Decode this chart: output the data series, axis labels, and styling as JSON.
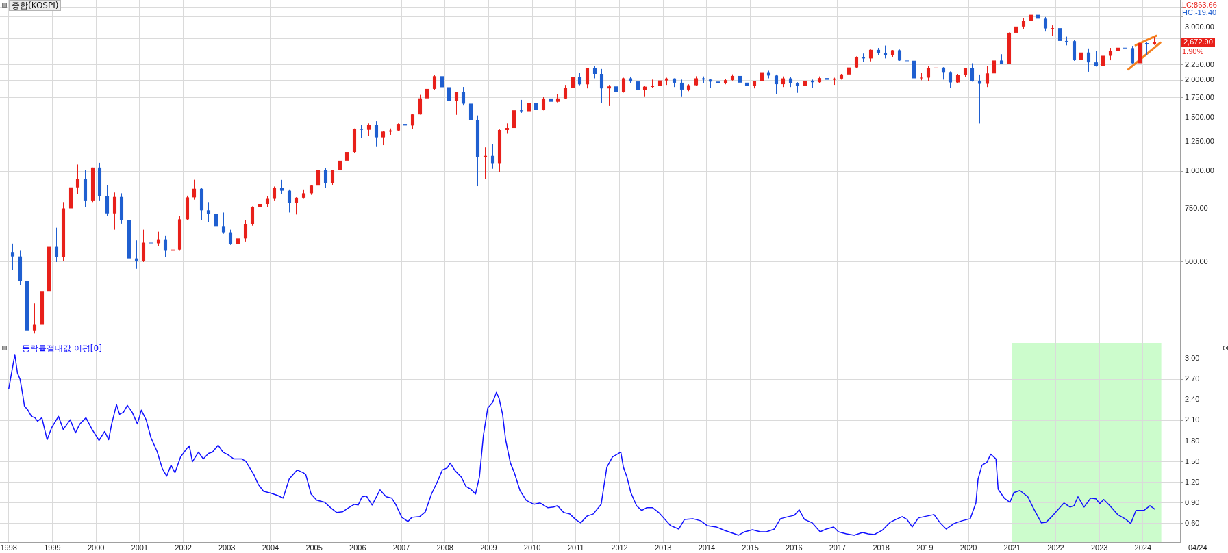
{
  "chart_data": [
    {
      "type": "candlestick",
      "title": "종합(KOSPI)",
      "x": [
        1998.08,
        1998.25,
        1998.42,
        1998.58,
        1998.75,
        1998.92,
        1999.08,
        1999.25,
        1999.42,
        1999.58,
        1999.75,
        1999.92,
        2000.08,
        2000.25,
        2000.42,
        2000.58,
        2000.75,
        2000.92,
        2001.08,
        2001.25,
        2001.42,
        2001.58,
        2001.75,
        2001.92,
        2002.08,
        2002.25,
        2002.42,
        2002.58,
        2002.75,
        2002.92,
        2003.08,
        2003.25,
        2003.42,
        2003.58,
        2003.75,
        2003.92,
        2004.08,
        2004.25,
        2004.42,
        2004.58,
        2004.75,
        2004.92,
        2005.08,
        2005.25,
        2005.42,
        2005.58,
        2005.75,
        2005.92,
        2006.08,
        2006.25,
        2006.42,
        2006.58,
        2006.75,
        2006.92,
        2007.08,
        2007.25,
        2007.42,
        2007.58,
        2007.75,
        2007.92,
        2008.08,
        2008.25,
        2008.42,
        2008.58,
        2008.75,
        2008.92,
        2009.08,
        2009.25,
        2009.42,
        2009.58,
        2009.75,
        2009.92,
        2010.08,
        2010.25,
        2010.42,
        2010.58,
        2010.75,
        2010.92,
        2011.08,
        2011.25,
        2011.42,
        2011.58,
        2011.75,
        2011.92,
        2012.08,
        2012.25,
        2012.42,
        2012.58,
        2012.75,
        2012.92,
        2013.08,
        2013.25,
        2013.42,
        2013.58,
        2013.75,
        2013.92,
        2014.08,
        2014.25,
        2014.42,
        2014.58,
        2014.75,
        2014.92,
        2015.08,
        2015.25,
        2015.42,
        2015.58,
        2015.75,
        2015.92,
        2016.08,
        2016.25,
        2016.42,
        2016.58,
        2016.75,
        2016.92,
        2017.08,
        2017.25,
        2017.42,
        2017.58,
        2017.75,
        2017.92,
        2018.08,
        2018.25,
        2018.42,
        2018.58,
        2018.75,
        2018.92,
        2019.08,
        2019.25,
        2019.42,
        2019.58,
        2019.75,
        2019.92,
        2020.08,
        2020.25,
        2020.42,
        2020.58,
        2020.75,
        2020.92,
        2021.08,
        2021.25,
        2021.42,
        2021.58,
        2021.75,
        2021.92,
        2022.08,
        2022.25,
        2022.42,
        2022.58,
        2022.75,
        2022.92,
        2023.08,
        2023.25,
        2023.42,
        2023.58,
        2023.75,
        2023.92,
        2024.08,
        2024.25
      ],
      "ohlc": [
        [
          540,
          576,
          470,
          522
        ],
        [
          522,
          545,
          420,
          434
        ],
        [
          434,
          450,
          277,
          297
        ],
        [
          297,
          365,
          290,
          310
        ],
        [
          310,
          410,
          282,
          401
        ],
        [
          401,
          580,
          395,
          562
        ],
        [
          562,
          650,
          500,
          519
        ],
        [
          519,
          790,
          505,
          753
        ],
        [
          753,
          890,
          690,
          884
        ],
        [
          884,
          1052,
          840,
          943
        ],
        [
          943,
          1010,
          760,
          800
        ],
        [
          800,
          1028,
          790,
          1028
        ],
        [
          1028,
          1066,
          800,
          828
        ],
        [
          828,
          900,
          710,
          725
        ],
        [
          725,
          850,
          640,
          822
        ],
        [
          822,
          845,
          670,
          688
        ],
        [
          688,
          720,
          505,
          514
        ],
        [
          514,
          590,
          475,
          505
        ],
        [
          505,
          640,
          500,
          580
        ],
        [
          580,
          590,
          490,
          577
        ],
        [
          577,
          630,
          565,
          595
        ],
        [
          595,
          610,
          520,
          545
        ],
        [
          545,
          560,
          463,
          550
        ],
        [
          550,
          710,
          545,
          693
        ],
        [
          693,
          830,
          690,
          819
        ],
        [
          819,
          937,
          805,
          875
        ],
        [
          875,
          880,
          690,
          742
        ],
        [
          742,
          790,
          680,
          723
        ],
        [
          723,
          740,
          575,
          658
        ],
        [
          658,
          730,
          620,
          627
        ],
        [
          627,
          640,
          570,
          575
        ],
        [
          575,
          610,
          512,
          599
        ],
        [
          599,
          690,
          585,
          669
        ],
        [
          669,
          765,
          660,
          759
        ],
        [
          759,
          785,
          690,
          779
        ],
        [
          779,
          825,
          760,
          810
        ],
        [
          810,
          890,
          800,
          880
        ],
        [
          880,
          936,
          840,
          862
        ],
        [
          862,
          870,
          730,
          785
        ],
        [
          785,
          820,
          719,
          817
        ],
        [
          817,
          870,
          810,
          845
        ],
        [
          845,
          900,
          835,
          896
        ],
        [
          896,
          1022,
          890,
          1011
        ],
        [
          1011,
          1022,
          880,
          912
        ],
        [
          912,
          1010,
          900,
          1008
        ],
        [
          1008,
          1130,
          1000,
          1083
        ],
        [
          1083,
          1230,
          1080,
          1158
        ],
        [
          1158,
          1385,
          1150,
          1379
        ],
        [
          1379,
          1425,
          1290,
          1371
        ],
        [
          1371,
          1440,
          1310,
          1420
        ],
        [
          1420,
          1464,
          1203,
          1295
        ],
        [
          1295,
          1360,
          1220,
          1352
        ],
        [
          1352,
          1385,
          1320,
          1364
        ],
        [
          1364,
          1440,
          1355,
          1434
        ],
        [
          1434,
          1470,
          1345,
          1417
        ],
        [
          1417,
          1550,
          1380,
          1542
        ],
        [
          1542,
          1790,
          1540,
          1743
        ],
        [
          1743,
          2015,
          1638,
          1873
        ],
        [
          1873,
          2085,
          1860,
          2064
        ],
        [
          2064,
          2080,
          1770,
          1897
        ],
        [
          1897,
          1900,
          1560,
          1711
        ],
        [
          1711,
          1830,
          1537,
          1825
        ],
        [
          1825,
          1901,
          1650,
          1674
        ],
        [
          1674,
          1700,
          1440,
          1474
        ],
        [
          1474,
          1530,
          892,
          1113
        ],
        [
          1113,
          1200,
          940,
          1124
        ],
        [
          1124,
          1230,
          1018,
          1063
        ],
        [
          1063,
          1375,
          992,
          1369
        ],
        [
          1369,
          1440,
          1330,
          1390
        ],
        [
          1390,
          1600,
          1370,
          1591
        ],
        [
          1591,
          1723,
          1560,
          1580
        ],
        [
          1580,
          1690,
          1520,
          1682
        ],
        [
          1682,
          1725,
          1550,
          1594
        ],
        [
          1594,
          1760,
          1590,
          1741
        ],
        [
          1741,
          1760,
          1530,
          1698
        ],
        [
          1698,
          1800,
          1690,
          1742
        ],
        [
          1742,
          1930,
          1740,
          1882
        ],
        [
          1882,
          2055,
          1880,
          2051
        ],
        [
          2051,
          2115,
          1925,
          1939
        ],
        [
          1939,
          2200,
          1880,
          2192
        ],
        [
          2192,
          2231,
          2030,
          2100
        ],
        [
          2100,
          2180,
          1684,
          1880
        ],
        [
          1880,
          1930,
          1644,
          1909
        ],
        [
          1909,
          1940,
          1780,
          1825
        ],
        [
          1825,
          2040,
          1820,
          2030
        ],
        [
          2030,
          2057,
          1960,
          1982
        ],
        [
          1982,
          1990,
          1780,
          1854
        ],
        [
          1854,
          1920,
          1770,
          1905
        ],
        [
          1905,
          2010,
          1890,
          1912
        ],
        [
          1912,
          2000,
          1860,
          1997
        ],
        [
          1997,
          2040,
          1930,
          2027
        ],
        [
          2027,
          2030,
          1900,
          1963
        ],
        [
          1963,
          2010,
          1770,
          1863
        ],
        [
          1863,
          1940,
          1840,
          1926
        ],
        [
          1926,
          2063,
          1920,
          2030
        ],
        [
          2030,
          2060,
          1960,
          2011
        ],
        [
          2011,
          2015,
          1886,
          1980
        ],
        [
          1980,
          2010,
          1920,
          1961
        ],
        [
          1961,
          2020,
          1940,
          2002
        ],
        [
          2002,
          2093,
          1995,
          2068
        ],
        [
          2068,
          2070,
          1903,
          1964
        ],
        [
          1964,
          1990,
          1880,
          1916
        ],
        [
          1916,
          1990,
          1880,
          1985
        ],
        [
          1985,
          2189,
          1960,
          2127
        ],
        [
          2127,
          2150,
          2030,
          2074
        ],
        [
          2074,
          2090,
          1800,
          1941
        ],
        [
          1941,
          2060,
          1900,
          2029
        ],
        [
          2029,
          2050,
          1900,
          1961
        ],
        [
          1961,
          1970,
          1817,
          1916
        ],
        [
          1916,
          2020,
          1910,
          1994
        ],
        [
          1994,
          2010,
          1892,
          1970
        ],
        [
          1970,
          2060,
          1960,
          2034
        ],
        [
          2034,
          2073,
          1990,
          2008
        ],
        [
          2008,
          2040,
          1931,
          2026
        ],
        [
          2026,
          2100,
          2010,
          2091
        ],
        [
          2091,
          2220,
          2070,
          2205
        ],
        [
          2205,
          2400,
          2200,
          2391
        ],
        [
          2391,
          2453,
          2300,
          2363
        ],
        [
          2363,
          2530,
          2310,
          2523
        ],
        [
          2523,
          2561,
          2420,
          2467
        ],
        [
          2467,
          2607,
          2363,
          2427
        ],
        [
          2427,
          2520,
          2390,
          2515
        ],
        [
          2515,
          2530,
          2320,
          2326
        ],
        [
          2326,
          2340,
          2240,
          2322
        ],
        [
          2322,
          2350,
          1985,
          2030
        ],
        [
          2030,
          2120,
          2000,
          2041
        ],
        [
          2041,
          2230,
          1990,
          2195
        ],
        [
          2195,
          2250,
          2130,
          2203
        ],
        [
          2203,
          2210,
          2010,
          2130
        ],
        [
          2130,
          2140,
          1891,
          1967
        ],
        [
          1967,
          2100,
          1960,
          2083
        ],
        [
          2083,
          2200,
          2050,
          2197
        ],
        [
          2197,
          2277,
          1980,
          1987
        ],
        [
          1987,
          2090,
          1439,
          1947
        ],
        [
          1947,
          2225,
          1900,
          2108
        ],
        [
          2108,
          2458,
          2100,
          2326
        ],
        [
          2326,
          2440,
          2260,
          2267
        ],
        [
          2267,
          2880,
          2260,
          2873
        ],
        [
          2873,
          3266,
          2850,
          3013
        ],
        [
          3013,
          3220,
          2950,
          3147
        ],
        [
          3147,
          3316,
          3110,
          3296
        ],
        [
          3296,
          3310,
          3060,
          3199
        ],
        [
          3199,
          3240,
          2900,
          2970
        ],
        [
          2970,
          3040,
          2800,
          2977
        ],
        [
          2977,
          3000,
          2591,
          2699
        ],
        [
          2699,
          2790,
          2610,
          2695
        ],
        [
          2695,
          2720,
          2320,
          2332
        ],
        [
          2332,
          2550,
          2276,
          2472
        ],
        [
          2472,
          2550,
          2134,
          2293
        ],
        [
          2293,
          2500,
          2220,
          2236
        ],
        [
          2236,
          2490,
          2180,
          2412
        ],
        [
          2412,
          2560,
          2330,
          2501
        ],
        [
          2501,
          2650,
          2470,
          2564
        ],
        [
          2564,
          2668,
          2500,
          2556
        ],
        [
          2556,
          2600,
          2273,
          2277
        ],
        [
          2277,
          2670,
          2270,
          2655
        ],
        [
          2655,
          2680,
          2429,
          2642
        ],
        [
          2642,
          2780,
          2620,
          2672.9
        ]
      ],
      "colors": [
        "#1f5fd0",
        "#1f5fd0",
        "#1f5fd0",
        "#e8201a",
        "#e8201a",
        "#e8201a",
        "#1f5fd0",
        "#e8201a",
        "#e8201a",
        "#e8201a",
        "#1f5fd0",
        "#e8201a",
        "#1f5fd0",
        "#1f5fd0",
        "#e8201a",
        "#1f5fd0",
        "#1f5fd0",
        "#1f5fd0",
        "#e8201a",
        "#1f5fd0",
        "#e8201a",
        "#1f5fd0",
        "#e8201a",
        "#e8201a",
        "#e8201a",
        "#e8201a",
        "#1f5fd0",
        "#1f5fd0",
        "#1f5fd0",
        "#1f5fd0",
        "#1f5fd0",
        "#e8201a",
        "#e8201a",
        "#e8201a",
        "#e8201a",
        "#e8201a",
        "#e8201a",
        "#1f5fd0",
        "#1f5fd0",
        "#e8201a",
        "#e8201a",
        "#e8201a",
        "#e8201a",
        "#1f5fd0",
        "#e8201a",
        "#e8201a",
        "#e8201a",
        "#e8201a",
        "#1f5fd0",
        "#e8201a",
        "#1f5fd0",
        "#e8201a",
        "#e8201a",
        "#e8201a",
        "#1f5fd0",
        "#e8201a",
        "#e8201a",
        "#e8201a",
        "#e8201a",
        "#1f5fd0",
        "#1f5fd0",
        "#e8201a",
        "#1f5fd0",
        "#1f5fd0",
        "#1f5fd0",
        "#e8201a",
        "#1f5fd0",
        "#e8201a",
        "#e8201a",
        "#e8201a",
        "#1f5fd0",
        "#e8201a",
        "#1f5fd0",
        "#e8201a",
        "#1f5fd0",
        "#e8201a",
        "#e8201a",
        "#e8201a",
        "#1f5fd0",
        "#e8201a",
        "#1f5fd0",
        "#1f5fd0",
        "#e8201a",
        "#1f5fd0",
        "#e8201a",
        "#1f5fd0",
        "#1f5fd0",
        "#e8201a",
        "#e8201a",
        "#e8201a",
        "#e8201a",
        "#1f5fd0",
        "#1f5fd0",
        "#e8201a",
        "#e8201a",
        "#1f5fd0",
        "#1f5fd0",
        "#1f5fd0",
        "#e8201a",
        "#e8201a",
        "#1f5fd0",
        "#1f5fd0",
        "#e8201a",
        "#e8201a",
        "#1f5fd0",
        "#1f5fd0",
        "#e8201a",
        "#1f5fd0",
        "#1f5fd0",
        "#e8201a",
        "#1f5fd0",
        "#e8201a",
        "#1f5fd0",
        "#e8201a",
        "#e8201a",
        "#e8201a",
        "#e8201a",
        "#1f5fd0",
        "#e8201a",
        "#1f5fd0",
        "#1f5fd0",
        "#e8201a",
        "#1f5fd0",
        "#1f5fd0",
        "#1f5fd0",
        "#e8201a",
        "#e8201a",
        "#e8201a",
        "#1f5fd0",
        "#1f5fd0",
        "#e8201a",
        "#e8201a",
        "#1f5fd0",
        "#1f5fd0",
        "#e8201a",
        "#e8201a",
        "#1f5fd0",
        "#e8201a",
        "#e8201a",
        "#e8201a",
        "#e8201a",
        "#1f5fd0",
        "#1f5fd0",
        "#e8201a",
        "#1f5fd0",
        "#1f5fd0",
        "#1f5fd0",
        "#e8201a",
        "#1f5fd0",
        "#1f5fd0",
        "#e8201a",
        "#e8201a",
        "#e8201a",
        "#1f5fd0",
        "#1f5fd0",
        "#e8201a",
        "#1f5fd0",
        "#e8201a"
      ],
      "series": [
        {
          "type": "line",
          "color": "#f58220",
          "x": [
            2023.83,
            2024.31
          ],
          "values": [
            2612,
            2810
          ]
        },
        {
          "type": "line",
          "color": "#f58220",
          "x": [
            2023.66,
            2024.4
          ],
          "values": [
            2172,
            2666
          ]
        }
      ],
      "xlim": [
        1997.8,
        2024.85
      ],
      "xticks": [
        1998,
        1999,
        2000,
        2001,
        2002,
        2003,
        2004,
        2005,
        2006,
        2007,
        2008,
        2009,
        2010,
        2011,
        2012,
        2013,
        2014,
        2015,
        2016,
        2017,
        2018,
        2019,
        2020,
        2021,
        2022,
        2023,
        2024
      ],
      "ylim": [
        270,
        3690
      ],
      "yticks": [
        {
          "value": 500,
          "label": "500.00"
        },
        {
          "value": 750,
          "label": "750.00"
        },
        {
          "value": 1000,
          "label": "1,000.00"
        },
        {
          "value": 1250,
          "label": "1,250.00"
        },
        {
          "value": 1500,
          "label": "1,500.00"
        },
        {
          "value": 1750,
          "label": "1,750.00"
        },
        {
          "value": 2000,
          "label": "2,000.00"
        },
        {
          "value": 2250,
          "label": "2,250.00"
        },
        {
          "value": 2500,
          "label": null
        },
        {
          "value": 2750,
          "label": null
        },
        {
          "value": 3000,
          "label": "3,000.00"
        },
        {
          "value": 3250,
          "label": null
        },
        {
          "value": 3500,
          "label": null
        }
      ],
      "log": true,
      "grid": true,
      "tick_labels": "y",
      "annotations": [
        "LC:863.66",
        "HC:-19.40",
        "2,672.90",
        "1.90%"
      ]
    },
    {
      "type": "line",
      "title": "등락률절대값 이평[0]",
      "x": [
        1998.0,
        1998.14,
        1998.2,
        1998.26,
        1998.32,
        1998.36,
        1998.44,
        1998.52,
        1998.6,
        1998.66,
        1998.76,
        1998.88,
        1998.98,
        1999.14,
        1999.25,
        1999.41,
        1999.53,
        1999.63,
        1999.77,
        1999.91,
        2000.07,
        2000.2,
        2000.29,
        2000.36,
        2000.47,
        2000.54,
        2000.63,
        2000.72,
        2000.83,
        2000.95,
        2001.04,
        2001.15,
        2001.26,
        2001.4,
        2001.52,
        2001.62,
        2001.72,
        2001.81,
        2001.94,
        2002.08,
        2002.14,
        2002.21,
        2002.35,
        2002.46,
        2002.58,
        2002.67,
        2002.8,
        2002.91,
        2003.03,
        2003.16,
        2003.34,
        2003.43,
        2003.62,
        2003.72,
        2003.84,
        2004.02,
        2004.16,
        2004.29,
        2004.43,
        2004.61,
        2004.75,
        2004.81,
        2004.93,
        2005.06,
        2005.24,
        2005.38,
        2005.52,
        2005.65,
        2005.79,
        2005.92,
        2006.01,
        2006.1,
        2006.2,
        2006.33,
        2006.51,
        2006.65,
        2006.78,
        2006.87,
        2007.01,
        2007.15,
        2007.24,
        2007.42,
        2007.55,
        2007.69,
        2007.82,
        2007.94,
        2008.05,
        2008.12,
        2008.23,
        2008.37,
        2008.48,
        2008.59,
        2008.7,
        2008.79,
        2008.88,
        2008.98,
        2009.09,
        2009.18,
        2009.24,
        2009.32,
        2009.39,
        2009.5,
        2009.59,
        2009.72,
        2009.86,
        2010.04,
        2010.18,
        2010.36,
        2010.49,
        2010.58,
        2010.72,
        2010.86,
        2010.99,
        2011.11,
        2011.26,
        2011.4,
        2011.58,
        2011.62,
        2011.71,
        2011.84,
        2012.03,
        2012.09,
        2012.17,
        2012.26,
        2012.39,
        2012.51,
        2012.62,
        2012.76,
        2012.9,
        2013.03,
        2013.17,
        2013.36,
        2013.49,
        2013.68,
        2013.86,
        2014.01,
        2014.22,
        2014.41,
        2014.55,
        2014.73,
        2014.87,
        2015.05,
        2015.23,
        2015.37,
        2015.55,
        2015.69,
        2015.87,
        2016.01,
        2016.12,
        2016.24,
        2016.42,
        2016.6,
        2016.74,
        2016.91,
        2017.02,
        2017.2,
        2017.38,
        2017.57,
        2017.7,
        2017.84,
        2018.02,
        2018.21,
        2018.34,
        2018.48,
        2018.59,
        2018.71,
        2018.85,
        2018.98,
        2019.21,
        2019.35,
        2019.49,
        2019.67,
        2019.85,
        2020.04,
        2020.17,
        2020.22,
        2020.31,
        2020.42,
        2020.51,
        2020.63,
        2020.68,
        2020.82,
        2020.95,
        2021.04,
        2021.18,
        2021.36,
        2021.5,
        2021.67,
        2021.78,
        2021.91,
        2022.05,
        2022.19,
        2022.33,
        2022.42,
        2022.51,
        2022.65,
        2022.8,
        2022.92,
        2023.01,
        2023.1,
        2023.24,
        2023.42,
        2023.61,
        2023.72,
        2023.84,
        2024.02,
        2024.16,
        2024.27
      ],
      "series": [
        {
          "color": "#1010ff",
          "values": [
            2.56,
            3.06,
            2.79,
            2.7,
            2.48,
            2.31,
            2.25,
            2.16,
            2.14,
            2.09,
            2.14,
            1.82,
            1.99,
            2.16,
            1.97,
            2.11,
            1.92,
            2.05,
            2.14,
            1.97,
            1.81,
            1.94,
            1.82,
            2.05,
            2.33,
            2.19,
            2.22,
            2.32,
            2.22,
            2.05,
            2.25,
            2.11,
            1.85,
            1.65,
            1.4,
            1.29,
            1.45,
            1.34,
            1.57,
            1.69,
            1.73,
            1.5,
            1.64,
            1.54,
            1.62,
            1.64,
            1.74,
            1.64,
            1.6,
            1.54,
            1.54,
            1.51,
            1.31,
            1.17,
            1.07,
            1.04,
            1.01,
            0.97,
            1.25,
            1.38,
            1.34,
            1.31,
            1.03,
            0.94,
            0.91,
            0.83,
            0.76,
            0.77,
            0.83,
            0.88,
            0.87,
            0.99,
            1.0,
            0.87,
            1.09,
            0.99,
            0.97,
            0.88,
            0.69,
            0.63,
            0.69,
            0.7,
            0.77,
            1.03,
            1.2,
            1.38,
            1.41,
            1.48,
            1.37,
            1.28,
            1.14,
            1.1,
            1.03,
            1.28,
            1.88,
            2.28,
            2.36,
            2.51,
            2.42,
            2.19,
            1.82,
            1.48,
            1.34,
            1.08,
            0.94,
            0.88,
            0.9,
            0.83,
            0.84,
            0.86,
            0.76,
            0.74,
            0.66,
            0.61,
            0.71,
            0.74,
            0.88,
            1.05,
            1.42,
            1.57,
            1.64,
            1.42,
            1.28,
            1.05,
            0.86,
            0.79,
            0.83,
            0.83,
            0.76,
            0.67,
            0.57,
            0.52,
            0.66,
            0.67,
            0.64,
            0.57,
            0.55,
            0.5,
            0.47,
            0.43,
            0.48,
            0.51,
            0.48,
            0.48,
            0.52,
            0.67,
            0.7,
            0.72,
            0.8,
            0.66,
            0.61,
            0.48,
            0.52,
            0.55,
            0.48,
            0.45,
            0.43,
            0.47,
            0.45,
            0.44,
            0.5,
            0.62,
            0.66,
            0.7,
            0.66,
            0.55,
            0.68,
            0.7,
            0.73,
            0.61,
            0.52,
            0.6,
            0.64,
            0.67,
            0.9,
            1.25,
            1.45,
            1.49,
            1.61,
            1.54,
            1.1,
            0.97,
            0.91,
            1.05,
            1.08,
            0.99,
            0.81,
            0.61,
            0.62,
            0.7,
            0.8,
            0.9,
            0.84,
            0.86,
            0.99,
            0.84,
            0.97,
            0.96,
            0.89,
            0.95,
            0.86,
            0.73,
            0.66,
            0.6,
            0.79,
            0.79,
            0.86,
            0.81
          ]
        }
      ],
      "xlim": [
        1997.8,
        2024.85
      ],
      "xticks": [
        1998,
        1999,
        2000,
        2001,
        2002,
        2003,
        2004,
        2005,
        2006,
        2007,
        2008,
        2009,
        2010,
        2011,
        2012,
        2013,
        2014,
        2015,
        2016,
        2017,
        2018,
        2019,
        2020,
        2021,
        2022,
        2023,
        2024
      ],
      "ylim": [
        0.33,
        3.23
      ],
      "yticks": [
        {
          "value": 0.6,
          "label": "0.60"
        },
        {
          "value": 0.9,
          "label": "0.90"
        },
        {
          "value": 1.2,
          "label": "1.20"
        },
        {
          "value": 1.5,
          "label": "1.50"
        },
        {
          "value": 1.8,
          "label": "1.80"
        },
        {
          "value": 2.1,
          "label": "2.10"
        },
        {
          "value": 2.4,
          "label": "2.40"
        },
        {
          "value": 2.7,
          "label": "2.70"
        },
        {
          "value": 3.0,
          "label": "3.00"
        }
      ],
      "grid": true,
      "bands": [
        {
          "axis": "x",
          "from": 2021.0,
          "to": 2024.42,
          "color": "#ccfccc"
        }
      ],
      "annotations": [
        "04/24"
      ]
    }
  ]
}
